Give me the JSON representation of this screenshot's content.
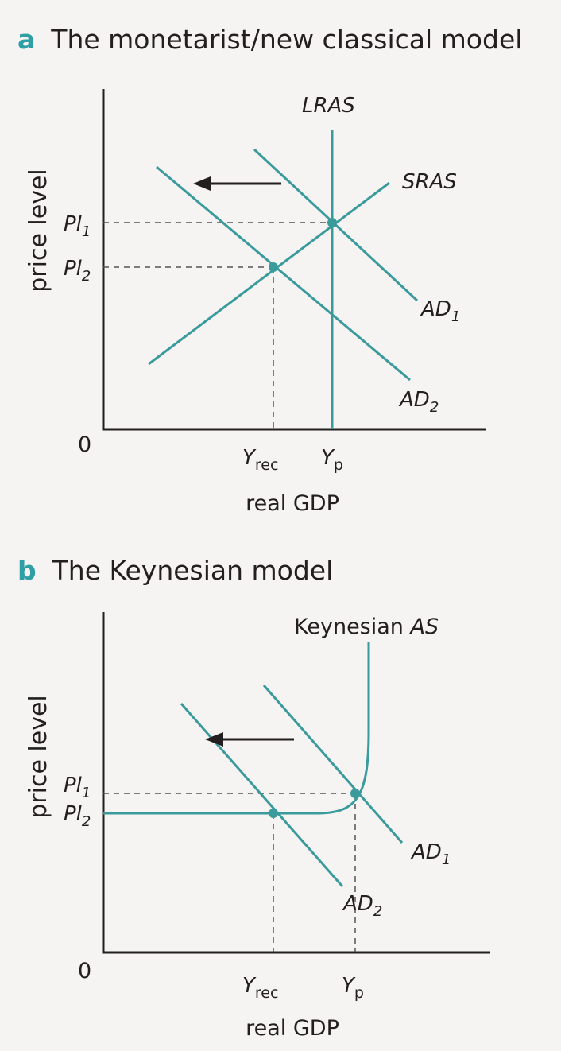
{
  "panel_a": {
    "letter": "a",
    "title": "The monetarist/new classical model",
    "y_axis_label": "price level",
    "x_axis_label": "real GDP",
    "origin": "0",
    "curves": {
      "lras": "LRAS",
      "sras": "SRAS",
      "ad1": "AD",
      "ad1_sub": "1",
      "ad2": "AD",
      "ad2_sub": "2"
    },
    "y_ticks": {
      "pl1": "Pl",
      "pl1_sub": "1",
      "pl2": "Pl",
      "pl2_sub": "2"
    },
    "x_ticks": {
      "yrec": "Y",
      "yrec_sub": "rec",
      "yp": "Y",
      "yp_sub": "p"
    }
  },
  "panel_b": {
    "letter": "b",
    "title": "The Keynesian model",
    "y_axis_label": "price level",
    "x_axis_label": "real GDP",
    "origin": "0",
    "curves": {
      "as_prefix": "Keynesian ",
      "as": "AS",
      "ad1": "AD",
      "ad1_sub": "1",
      "ad2": "AD",
      "ad2_sub": "2"
    },
    "y_ticks": {
      "pl1": "Pl",
      "pl1_sub": "1",
      "pl2": "Pl",
      "pl2_sub": "2"
    },
    "x_ticks": {
      "yrec": "Y",
      "yrec_sub": "rec",
      "yp": "Y",
      "yp_sub": "p"
    }
  },
  "colors": {
    "curve": "#3a9a9c",
    "accent_letter": "#2f9fa6",
    "axis": "#231f20"
  }
}
